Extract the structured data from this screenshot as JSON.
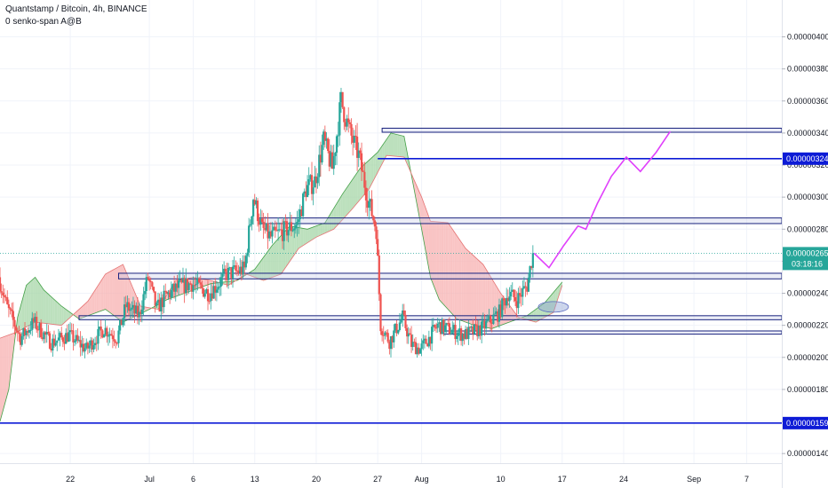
{
  "header": {
    "title": "Quantstamp / Bitcoin, 4h, BINANCE",
    "indicator": "0 senko-span A@B"
  },
  "colors": {
    "up": "#26a69a",
    "down": "#ef5350",
    "cloud_bull": "#a5d6a7",
    "cloud_bear": "#f7b0b0",
    "zone_fill": "#c5cae9",
    "zone_line": "#1a237e",
    "level_line": "#0d1bd6",
    "projection": "#e040fb",
    "ellipse": "#90a4d4",
    "current_price": "#26a69a"
  },
  "chart_data": {
    "type": "candlestick",
    "title": "Quantstamp / Bitcoin, 4h, BINANCE",
    "xlabel": "",
    "ylabel": "",
    "ylim": [
      1.34e-06,
      4.23e-06
    ],
    "y_ticks": [
      "0.00000400",
      "0.00000380",
      "0.00000360",
      "0.00000340",
      "0.00000320",
      "0.00000300",
      "0.00000280",
      "0.00000260",
      "0.00000240",
      "0.00000220",
      "0.00000200",
      "0.00000180",
      "0.00000160",
      "0.00000140"
    ],
    "x_ticks": [
      "22",
      "Jul",
      "6",
      "13",
      "20",
      "27",
      "Aug",
      "10",
      "17",
      "24",
      "Sep",
      "7"
    ],
    "x_tick_days": [
      22,
      31,
      36,
      43,
      50,
      57,
      62,
      71,
      78,
      85,
      93,
      99
    ],
    "xlim_days": [
      14,
      103
    ],
    "current_price": {
      "label": "0.00000265",
      "value": 2.65e-06,
      "countdown": "03:18:16"
    },
    "levels": [
      {
        "label": "0.00000324",
        "value": 3.24e-06
      },
      {
        "label": "0.00000159",
        "value": 1.59e-06
      }
    ],
    "zones": [
      {
        "low": 3.405e-06,
        "high": 3.43e-06,
        "from_day": 57.5
      },
      {
        "low": 2.835e-06,
        "high": 2.87e-06,
        "from_day": 43.5
      },
      {
        "low": 2.49e-06,
        "high": 2.525e-06,
        "from_day": 27.5
      },
      {
        "low": 2.235e-06,
        "high": 2.26e-06,
        "from_day": 23
      },
      {
        "low": 2.145e-06,
        "high": 2.165e-06,
        "from_day": 64.5
      }
    ],
    "projection_path": [
      [
        74.8,
        2.65e-06
      ],
      [
        76.5,
        2.56e-06
      ],
      [
        78.2,
        2.7e-06
      ],
      [
        79.8,
        2.82e-06
      ],
      [
        80.7,
        2.8e-06
      ],
      [
        82.0,
        2.96e-06
      ],
      [
        83.6,
        3.13e-06
      ],
      [
        85.3,
        3.25e-06
      ],
      [
        86.9,
        3.16e-06
      ],
      [
        88.7,
        3.28e-06
      ],
      [
        90.3,
        3.41e-06
      ]
    ],
    "target_ellipse": {
      "day": 77,
      "value": 2.315e-06
    },
    "price_path": [
      [
        14,
        2.5e-06
      ],
      [
        15,
        2.31e-06
      ],
      [
        16.5,
        2.12e-06
      ],
      [
        18,
        2.22e-06
      ],
      [
        20,
        2.09e-06
      ],
      [
        22,
        2.14e-06
      ],
      [
        24,
        2.05e-06
      ],
      [
        26,
        2.18e-06
      ],
      [
        27.5,
        2.12e-06
      ],
      [
        28.5,
        2.32e-06
      ],
      [
        30,
        2.26e-06
      ],
      [
        31,
        2.5e-06
      ],
      [
        32,
        2.3e-06
      ],
      [
        33,
        2.38e-06
      ],
      [
        34.5,
        2.44e-06
      ],
      [
        36,
        2.46e-06
      ],
      [
        38,
        2.4e-06
      ],
      [
        40,
        2.52e-06
      ],
      [
        42,
        2.55e-06
      ],
      [
        43,
        3e-06
      ],
      [
        44,
        2.8e-06
      ],
      [
        45,
        2.75e-06
      ],
      [
        46.5,
        2.79e-06
      ],
      [
        48,
        2.83e-06
      ],
      [
        49,
        3.05e-06
      ],
      [
        50,
        3.1e-06
      ],
      [
        51,
        3.35e-06
      ],
      [
        52,
        3.18e-06
      ],
      [
        53,
        3.6e-06
      ],
      [
        54,
        3.4e-06
      ],
      [
        55,
        3.26e-06
      ],
      [
        56,
        3e-06
      ],
      [
        57,
        2.8e-06
      ],
      [
        57.5,
        2.2e-06
      ],
      [
        58.5,
        2.1e-06
      ],
      [
        60,
        2.25e-06
      ],
      [
        61,
        2.08e-06
      ],
      [
        62,
        2.05e-06
      ],
      [
        63,
        2.12e-06
      ],
      [
        64,
        2.2e-06
      ],
      [
        65,
        2.18e-06
      ],
      [
        67,
        2.14e-06
      ],
      [
        69,
        2.18e-06
      ],
      [
        71,
        2.28e-06
      ],
      [
        72,
        2.4e-06
      ],
      [
        73,
        2.36e-06
      ],
      [
        74.2,
        2.45e-06
      ],
      [
        74.8,
        2.65e-06
      ]
    ],
    "senkou_a": [
      [
        14,
        1.6e-06
      ],
      [
        15,
        1.8e-06
      ],
      [
        16,
        2.25e-06
      ],
      [
        17,
        2.45e-06
      ],
      [
        18,
        2.5e-06
      ],
      [
        19,
        2.42e-06
      ],
      [
        21,
        2.32e-06
      ],
      [
        23,
        2.24e-06
      ],
      [
        26,
        2.3e-06
      ],
      [
        28,
        2.22e-06
      ],
      [
        31,
        2.3e-06
      ],
      [
        33,
        2.36e-06
      ],
      [
        36,
        2.42e-06
      ],
      [
        38,
        2.46e-06
      ],
      [
        41,
        2.48e-06
      ],
      [
        43,
        2.55e-06
      ],
      [
        45,
        2.7e-06
      ],
      [
        47,
        2.82e-06
      ],
      [
        49,
        2.8e-06
      ],
      [
        51,
        2.84e-06
      ],
      [
        53,
        3.02e-06
      ],
      [
        55,
        3.18e-06
      ],
      [
        57,
        3.28e-06
      ],
      [
        58.5,
        3.4e-06
      ],
      [
        60,
        3.38e-06
      ],
      [
        62,
        2.8e-06
      ],
      [
        63,
        2.5e-06
      ],
      [
        64,
        2.36e-06
      ],
      [
        66,
        2.24e-06
      ],
      [
        68,
        2.2e-06
      ],
      [
        70,
        2.18e-06
      ],
      [
        72,
        2.22e-06
      ],
      [
        74,
        2.26e-06
      ],
      [
        76,
        2.34e-06
      ],
      [
        78,
        2.47e-06
      ]
    ],
    "senkou_b": [
      [
        14,
        2.12e-06
      ],
      [
        16,
        2.16e-06
      ],
      [
        18,
        2.22e-06
      ],
      [
        21,
        2.2e-06
      ],
      [
        24,
        2.35e-06
      ],
      [
        26,
        2.52e-06
      ],
      [
        28,
        2.58e-06
      ],
      [
        30,
        2.32e-06
      ],
      [
        32,
        2.3e-06
      ],
      [
        34,
        2.48e-06
      ],
      [
        36,
        2.5e-06
      ],
      [
        38,
        2.48e-06
      ],
      [
        40,
        2.45e-06
      ],
      [
        42,
        2.52e-06
      ],
      [
        44,
        2.48e-06
      ],
      [
        46,
        2.52e-06
      ],
      [
        48,
        2.68e-06
      ],
      [
        50,
        2.75e-06
      ],
      [
        52,
        2.8e-06
      ],
      [
        54,
        2.92e-06
      ],
      [
        56,
        3.05e-06
      ],
      [
        58,
        3.26e-06
      ],
      [
        60,
        3.25e-06
      ],
      [
        62,
        3e-06
      ],
      [
        63,
        2.85e-06
      ],
      [
        65,
        2.84e-06
      ],
      [
        67,
        2.68e-06
      ],
      [
        69,
        2.58e-06
      ],
      [
        71,
        2.4e-06
      ],
      [
        73,
        2.25e-06
      ],
      [
        75,
        2.22e-06
      ],
      [
        77,
        2.28e-06
      ],
      [
        78,
        2.45e-06
      ]
    ]
  }
}
